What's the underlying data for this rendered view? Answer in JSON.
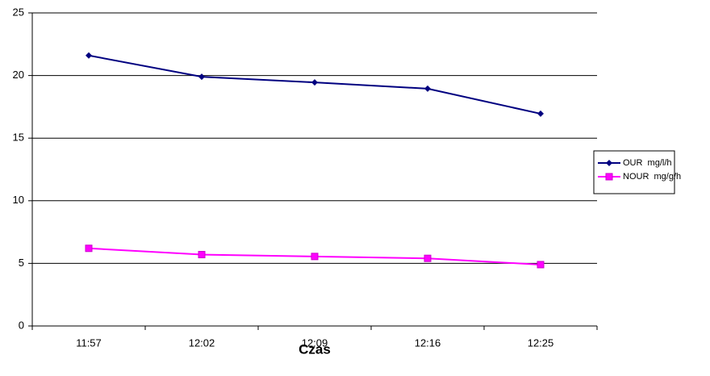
{
  "chart_data": {
    "type": "line",
    "x_label": "Czas",
    "categories": [
      "11:57",
      "12:02",
      "12:09",
      "12:16",
      "12:25"
    ],
    "series": [
      {
        "name": "OUR  mg/l/h",
        "color": "#000080",
        "marker": "diamond",
        "values": [
          21.6,
          19.9,
          19.45,
          18.95,
          16.95
        ]
      },
      {
        "name": "NOUR  mg/g/h",
        "color": "#ff00ff",
        "marker": "square",
        "values": [
          6.2,
          5.7,
          5.55,
          5.4,
          4.9
        ]
      }
    ],
    "ylim": [
      0,
      25
    ],
    "yticks": [
      0,
      5,
      10,
      15,
      20,
      25
    ],
    "grid": true,
    "legend": "right"
  }
}
